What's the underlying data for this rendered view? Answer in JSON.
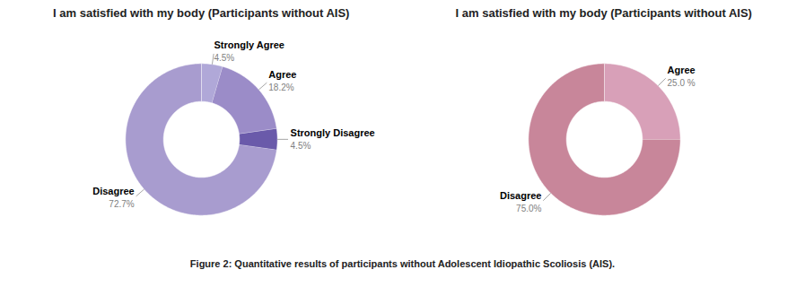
{
  "chart_data": [
    {
      "type": "donut",
      "title": "I am satisfied with my body (Participants without AIS)",
      "categories": [
        "Strongly Agree",
        "Agree",
        "Strongly Disagree",
        "Disagree"
      ],
      "values": [
        4.5,
        18.2,
        4.5,
        72.7
      ],
      "value_labels": [
        "4.5%",
        "18.2%",
        "4.5%",
        "72.7%"
      ],
      "colors": [
        "#b0a8d8",
        "#9b8cc8",
        "#6a5aaa",
        "#a89ccf"
      ],
      "data_labels": true
    },
    {
      "type": "donut",
      "title": "I am satisfied with my body (Participants without AIS)",
      "categories": [
        "Agree",
        "Disagree"
      ],
      "values": [
        25.0,
        75.0
      ],
      "value_labels": [
        "25.0 %",
        "75.0%"
      ],
      "colors": [
        "#d8a0b8",
        "#c8869a"
      ],
      "data_labels": true
    }
  ],
  "caption": "Figure 2: Quantitative results of participants without Adolescent Idiopathic Scoliosis (AIS)."
}
